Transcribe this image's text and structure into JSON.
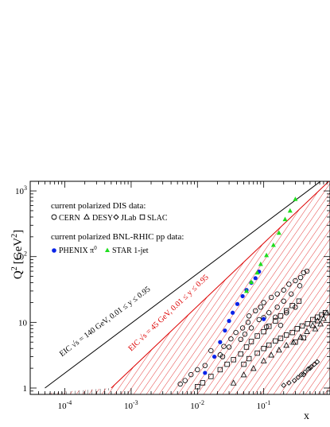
{
  "chart_data": {
    "type": "scatter",
    "title": "",
    "xlabel": "x",
    "ylabel": {
      "q": "Q",
      "sup": "2",
      "unit": "[GeV",
      "unit_sup": "2",
      "close": "]"
    },
    "x_scale": "log",
    "y_scale": "log",
    "xlim": [
      3e-05,
      1
    ],
    "ylim": [
      0.8,
      1400
    ],
    "x_ticks": [
      {
        "value": 0.0001,
        "base": "10",
        "exp": "-4"
      },
      {
        "value": 0.001,
        "base": "10",
        "exp": "-3"
      },
      {
        "value": 0.01,
        "base": "10",
        "exp": "-2"
      },
      {
        "value": 0.1,
        "base": "10",
        "exp": "-1"
      }
    ],
    "y_ticks": [
      {
        "value": 1,
        "base": "1",
        "exp": ""
      },
      {
        "value": 10,
        "base": "10",
        "exp": ""
      },
      {
        "value": 100,
        "base": "10",
        "exp": "2"
      },
      {
        "value": 1000,
        "base": "10",
        "exp": "3"
      }
    ],
    "regions": [
      {
        "name": "EIC_140",
        "label": "EIC √s = 140 GeV, 0.01 ≤ y ≤ 0.95",
        "color": "#000000",
        "bound_x": [
          5e-05,
          0.72
        ],
        "bound_q2": [
          1,
          1400
        ],
        "label_at": [
          9e-05,
          3.0
        ]
      },
      {
        "name": "EIC_45",
        "label": "EIC √s = 45 GeV, 0.01 ≤ y ≤ 0.95",
        "color": "#dd0000",
        "bound_x": [
          0.0005,
          0.89
        ],
        "bound_q2": [
          1,
          1300
        ],
        "label_at": [
          0.001,
          3.6
        ]
      }
    ],
    "legend": {
      "placement": "top-left",
      "header_dis": "current polarized DIS data:",
      "header_rhic": "current polarized BNL-RHIC pp data:",
      "dis": [
        {
          "marker": "circle",
          "label": "CERN"
        },
        {
          "marker": "triangle",
          "label": "DESY"
        },
        {
          "marker": "diamond",
          "label": "JLab"
        },
        {
          "marker": "square",
          "label": "SLAC"
        }
      ],
      "rhic": [
        {
          "marker": "dot",
          "label": "PHENIX π",
          "sup": "0",
          "color": "#0a24e8"
        },
        {
          "marker": "star-triangle",
          "label": "STAR 1-jet",
          "color": "#1ede1e"
        }
      ]
    },
    "series": [
      {
        "name": "CERN",
        "marker": "circle",
        "points": [
          [
            0.0055,
            1.15
          ],
          [
            0.0065,
            1.3
          ],
          [
            0.008,
            1.6
          ],
          [
            0.01,
            1.9
          ],
          [
            0.013,
            2.2
          ],
          [
            0.016,
            3.7
          ],
          [
            0.022,
            3.2
          ],
          [
            0.025,
            4.3
          ],
          [
            0.032,
            5.6
          ],
          [
            0.038,
            7.0
          ],
          [
            0.048,
            8.2
          ],
          [
            0.058,
            10
          ],
          [
            0.06,
            12.5
          ],
          [
            0.075,
            15
          ],
          [
            0.09,
            17
          ],
          [
            0.1,
            20
          ],
          [
            0.13,
            24
          ],
          [
            0.16,
            27
          ],
          [
            0.2,
            31
          ],
          [
            0.24,
            38
          ],
          [
            0.3,
            43
          ],
          [
            0.36,
            48
          ],
          [
            0.4,
            57
          ],
          [
            0.45,
            60
          ],
          [
            0.024,
            3.0
          ],
          [
            0.03,
            4.2
          ],
          [
            0.045,
            5.5
          ],
          [
            0.052,
            6.6
          ],
          [
            0.065,
            8.2
          ],
          [
            0.085,
            11
          ],
          [
            0.1,
            11.8
          ],
          [
            0.12,
            14
          ],
          [
            0.16,
            17
          ],
          [
            0.2,
            21
          ],
          [
            0.26,
            27
          ],
          [
            0.35,
            36
          ],
          [
            0.11,
            8.5
          ],
          [
            0.15,
            12
          ],
          [
            0.18,
            9
          ],
          [
            0.22,
            14
          ],
          [
            0.3,
            17
          ]
        ]
      },
      {
        "name": "DESY",
        "marker": "triangle",
        "points": [
          [
            0.035,
            1.2
          ],
          [
            0.05,
            1.6
          ],
          [
            0.07,
            2.0
          ],
          [
            0.1,
            2.6
          ],
          [
            0.13,
            3.2
          ],
          [
            0.17,
            3.8
          ],
          [
            0.22,
            4.5
          ],
          [
            0.28,
            5.0
          ],
          [
            0.36,
            6.0
          ],
          [
            0.45,
            7.3
          ],
          [
            0.55,
            9.0
          ],
          [
            0.65,
            10.6
          ],
          [
            0.6,
            8.0
          ],
          [
            0.72,
            9.5
          ],
          [
            0.8,
            11.5
          ],
          [
            0.9,
            14
          ]
        ]
      },
      {
        "name": "JLab",
        "marker": "diamond",
        "points": [
          [
            0.2,
            1.1
          ],
          [
            0.24,
            1.2
          ],
          [
            0.29,
            1.3
          ],
          [
            0.33,
            1.45
          ],
          [
            0.37,
            1.6
          ],
          [
            0.42,
            1.75
          ],
          [
            0.47,
            1.95
          ],
          [
            0.52,
            2.1
          ],
          [
            0.58,
            2.3
          ],
          [
            0.64,
            2.5
          ],
          [
            0.4,
            1.6
          ],
          [
            0.5,
            2.0
          ]
        ]
      },
      {
        "name": "SLAC",
        "marker": "square",
        "points": [
          [
            0.01,
            1.05
          ],
          [
            0.012,
            1.2
          ],
          [
            0.016,
            1.5
          ],
          [
            0.022,
            1.9
          ],
          [
            0.028,
            2.3
          ],
          [
            0.035,
            2.7
          ],
          [
            0.045,
            3.3
          ],
          [
            0.055,
            4.2
          ],
          [
            0.065,
            5.1
          ],
          [
            0.08,
            6.2
          ],
          [
            0.1,
            7.2
          ],
          [
            0.12,
            8.7
          ],
          [
            0.15,
            10.5
          ],
          [
            0.18,
            12.5
          ],
          [
            0.22,
            15
          ],
          [
            0.27,
            18
          ],
          [
            0.34,
            21
          ],
          [
            0.05,
            2.3
          ],
          [
            0.06,
            2.8
          ],
          [
            0.08,
            3.4
          ],
          [
            0.1,
            4.0
          ],
          [
            0.12,
            4.5
          ],
          [
            0.15,
            5.2
          ],
          [
            0.18,
            5.7
          ],
          [
            0.22,
            6.4
          ],
          [
            0.27,
            7.0
          ],
          [
            0.32,
            8.0
          ],
          [
            0.38,
            8.8
          ],
          [
            0.46,
            9.5
          ],
          [
            0.55,
            11
          ],
          [
            0.65,
            12
          ],
          [
            0.75,
            13
          ],
          [
            0.85,
            14
          ],
          [
            0.3,
            5.0
          ],
          [
            0.4,
            5.8
          ]
        ]
      },
      {
        "name": "PHENIX π0",
        "marker": "dot",
        "color": "#0a24e8",
        "points": [
          [
            0.013,
            1.7
          ],
          [
            0.018,
            3.0
          ],
          [
            0.022,
            5.0
          ],
          [
            0.026,
            7.5
          ],
          [
            0.03,
            10.5
          ],
          [
            0.034,
            14
          ],
          [
            0.04,
            19
          ],
          [
            0.048,
            25
          ],
          [
            0.055,
            31
          ],
          [
            0.065,
            40
          ],
          [
            0.075,
            47
          ],
          [
            0.085,
            59
          ],
          [
            0.1,
            11.2
          ]
        ]
      },
      {
        "name": "STAR 1-jet",
        "marker": "star-triangle",
        "color": "#1ede1e",
        "points": [
          [
            0.055,
            30
          ],
          [
            0.065,
            41
          ],
          [
            0.08,
            57
          ],
          [
            0.09,
            77
          ],
          [
            0.11,
            105
          ],
          [
            0.14,
            150
          ],
          [
            0.17,
            230
          ],
          [
            0.21,
            370
          ],
          [
            0.25,
            500
          ],
          [
            0.3,
            750
          ]
        ]
      }
    ]
  }
}
